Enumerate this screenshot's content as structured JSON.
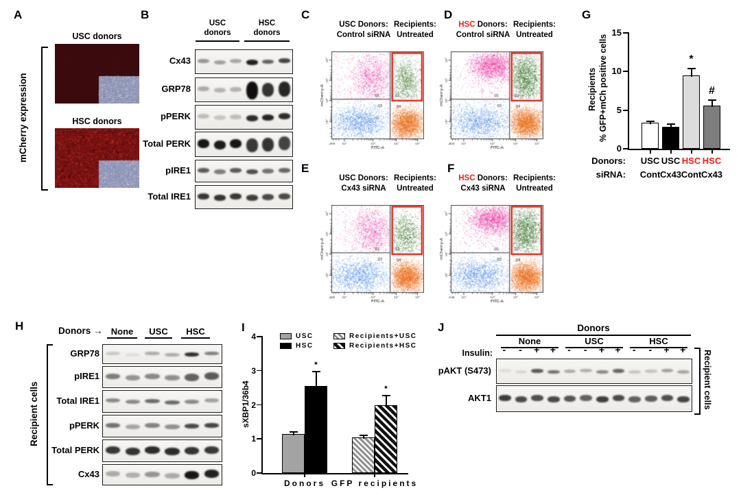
{
  "colors": {
    "hsc_red": "#ed2015",
    "gate_red": "#e32219"
  },
  "panels": {
    "A": {
      "label": "A",
      "side_label": "mCherry expression",
      "inset_color": "#9096b6",
      "images": [
        {
          "title": "USC donors",
          "base_color": "#3a0a0d",
          "appearance": "dark red, very faint mCherry signal, grayscale inset bottom-right"
        },
        {
          "title": "HSC donors",
          "base_color": "#731112",
          "appearance": "bright speckled red mCherry signal, grayscale inset bottom-right"
        }
      ]
    },
    "B": {
      "label": "B",
      "groups": [
        {
          "line1": "USC",
          "line2": "donors"
        },
        {
          "line1": "HSC",
          "line2": "donors"
        }
      ],
      "blots": [
        {
          "name": "Cx43",
          "band_h": 6,
          "lanes": [
            0.4,
            0.35,
            0.32,
            {
              "i": 0.9,
              "h": 8
            },
            0.62,
            {
              "i": 0.75,
              "h": 7
            }
          ]
        },
        {
          "name": "GRP78",
          "band_h": 7,
          "lanes": [
            0.3,
            0.26,
            0.27,
            {
              "i": 0.98,
              "h": 26
            },
            {
              "i": 0.82,
              "h": 20
            },
            {
              "i": 0.88,
              "h": 22
            }
          ]
        },
        {
          "name": "pPERK",
          "band_h": 7,
          "lanes": [
            0.22,
            0.18,
            0.22,
            {
              "i": 0.85,
              "h": 9
            },
            {
              "i": 0.88,
              "h": 9
            },
            {
              "i": 0.85,
              "h": 9
            }
          ]
        },
        {
          "name": "Total PERK",
          "band_h": 13,
          "lanes": [
            0.95,
            0.93,
            0.95,
            {
              "i": 0.8,
              "h": 20
            },
            {
              "i": 0.82,
              "h": 20
            },
            {
              "i": 0.75,
              "h": 20
            }
          ]
        },
        {
          "name": "pIRE1",
          "band_h": 7,
          "lanes": [
            0.65,
            0.5,
            0.65,
            0.7,
            0.55,
            0.6
          ]
        },
        {
          "name": "Total IRE1",
          "band_h": 9,
          "lanes": [
            0.8,
            0.82,
            0.8,
            0.78,
            0.72,
            0.72
          ]
        }
      ]
    },
    "H": {
      "label": "H",
      "donors_label": "Donors",
      "arrow": "→",
      "groups": [
        "None",
        "USC",
        "HSC"
      ],
      "side_label": "Recipient cells",
      "blots": [
        {
          "name": "GRP78",
          "band_h": 5,
          "lanes": [
            0.18,
            0.07,
            0.3,
            0.3,
            {
              "i": 0.85,
              "h": 6
            },
            0.5
          ]
        },
        {
          "name": "pIRE1",
          "band_h": 8,
          "lanes": [
            0.5,
            0.4,
            0.45,
            0.42,
            {
              "i": 0.62,
              "h": 11
            },
            {
              "i": 0.65,
              "h": 11
            }
          ]
        },
        {
          "name": "Total IRE1",
          "band_h": 6,
          "lanes": [
            0.45,
            0.45,
            0.58,
            0.58,
            0.45,
            0.35
          ]
        },
        {
          "name": "pPERK",
          "band_h": 7,
          "lanes": [
            0.55,
            0.32,
            0.48,
            0.42,
            0.72,
            0.75
          ]
        },
        {
          "name": "Total PERK",
          "band_h": 11,
          "lanes": [
            0.8,
            0.82,
            0.85,
            0.85,
            0.82,
            0.8
          ]
        },
        {
          "name": "Cx43",
          "band_h": 8,
          "lanes": [
            0.3,
            0.28,
            0.4,
            0.3,
            {
              "i": 0.95,
              "h": 12
            },
            {
              "i": 0.9,
              "h": 12
            }
          ]
        }
      ]
    },
    "J": {
      "label": "J",
      "donors_header": "Donors",
      "groups": [
        "None",
        "USC",
        "HSC"
      ],
      "insulin_label": "Insulin:",
      "insulin": [
        "-",
        "-",
        "+",
        "+",
        "-",
        "-",
        "+",
        "+",
        "-",
        "-",
        "+",
        "+"
      ],
      "side_label": "Recipient cells",
      "blots": [
        {
          "name": "pAKT (S473)",
          "band_h": 5,
          "lanes": [
            0.08,
            0.1,
            {
              "i": 0.65,
              "h": 6
            },
            0.55,
            0.3,
            0.28,
            0.45,
            {
              "i": 0.6,
              "h": 6
            },
            0.18,
            0.2,
            0.35,
            0.32
          ]
        },
        {
          "name": "AKT1",
          "band_h": 9,
          "lanes": [
            0.78,
            0.72,
            0.7,
            0.72,
            0.68,
            0.62,
            0.78,
            0.72,
            0.62,
            0.64,
            0.7,
            0.75
          ]
        }
      ]
    }
  },
  "chart_data": [
    {
      "panel": "G",
      "type": "bar",
      "ylabel_lines": [
        "Recipients",
        "% GFP+mCh positive cells"
      ],
      "ylim": [
        0,
        15
      ],
      "yticks": [
        0,
        5,
        10,
        15
      ],
      "row_labels": [
        "Donors:",
        "siRNA:"
      ],
      "categories": [
        {
          "donor": "USC",
          "sirna": "Cont",
          "donor_red": false
        },
        {
          "donor": "USC",
          "sirna": "Cx43",
          "donor_red": false
        },
        {
          "donor": "HSC",
          "sirna": "Cont",
          "donor_red": true
        },
        {
          "donor": "HSC",
          "sirna": "Cx43",
          "donor_red": true
        }
      ],
      "values": [
        3.4,
        2.8,
        9.5,
        5.6
      ],
      "errors": [
        0.2,
        0.5,
        1.0,
        0.8
      ],
      "sig": [
        "",
        "",
        "*",
        "#"
      ],
      "bar_fills": [
        "#ffffff",
        "#000000",
        "#dcdcdc",
        "#7d7d7d"
      ]
    },
    {
      "panel": "I",
      "type": "bar",
      "ylabel": "sXBP1/36b4",
      "ylim": [
        0,
        4
      ],
      "yticks": [
        0,
        1,
        2,
        3,
        4
      ],
      "groups": [
        "Donors",
        "GFP recipients"
      ],
      "bars": [
        {
          "label": "USC",
          "value": 1.15,
          "err": 0.07,
          "style": "gray",
          "sig": "",
          "group": 0
        },
        {
          "label": "HSC",
          "value": 2.55,
          "err": 0.45,
          "style": "black",
          "sig": "*",
          "group": 0
        },
        {
          "label": "Recipients+USC",
          "value": 1.05,
          "err": 0.07,
          "style": "hatch-gray",
          "sig": "",
          "group": 1
        },
        {
          "label": "Recipients+HSC",
          "value": 2.0,
          "err": 0.3,
          "style": "hatch-black",
          "sig": "*",
          "group": 1
        }
      ],
      "legend": [
        {
          "label": "USC",
          "style": "gray"
        },
        {
          "label": "HSC",
          "style": "black"
        },
        {
          "label": "Recipients+USC",
          "style": "hatch-gray"
        },
        {
          "label": "Recipients+HSC",
          "style": "hatch-black"
        }
      ]
    },
    {
      "panel": "C-F",
      "type": "scatter_flow",
      "x_axis": "FITC-A",
      "y_axis": "mCherry-A",
      "title_suffix": " Donors:",
      "recipients_label": "Recipients:",
      "x_ticks": [
        "10²",
        "10³",
        "10⁴",
        "10⁵"
      ],
      "y_ticks": [
        "10⁵",
        "10⁴",
        "10³",
        "10²"
      ],
      "quadrant_labels": [
        "Q1",
        "Q2",
        "Q3",
        "Q4"
      ],
      "panels": [
        {
          "label": "C",
          "donor": "USC",
          "red": false,
          "treatment": "Control siRNA",
          "recipients": "Untreated",
          "origin_tick": "-359",
          "donor_profile": "diffuse"
        },
        {
          "label": "D",
          "donor": "HSC",
          "red": true,
          "treatment": "Control siRNA",
          "recipients": "Untreated",
          "origin_tick": "-820",
          "donor_profile": "dense"
        },
        {
          "label": "E",
          "donor": "USC",
          "red": false,
          "treatment": "Cx43 siRNA",
          "recipients": "Untreated",
          "origin_tick": "-425",
          "donor_profile": "diffuse"
        },
        {
          "label": "F",
          "donor": "HSC",
          "red": true,
          "treatment": "Cx43 siRNA",
          "recipients": "Untreated",
          "origin_tick": "-106",
          "donor_profile": "dense"
        }
      ],
      "clusters": {
        "pink_diffuse": [
          {
            "cx": 0.44,
            "cy": 0.3,
            "sx": 0.1,
            "sy": 0.13,
            "n": 900
          },
          {
            "cx": 0.42,
            "cy": 0.3,
            "sx": 0.2,
            "sy": 0.2,
            "n": 700
          }
        ],
        "pink_dense": [
          {
            "cx": 0.45,
            "cy": 0.16,
            "sx": 0.12,
            "sy": 0.08,
            "n": 1900
          },
          {
            "cx": 0.43,
            "cy": 0.3,
            "sx": 0.22,
            "sy": 0.17,
            "n": 500
          }
        ],
        "blue": [
          {
            "cx": 0.3,
            "cy": 0.8,
            "sx": 0.15,
            "sy": 0.09,
            "n": 1200
          },
          {
            "cx": 0.33,
            "cy": 0.78,
            "sx": 0.25,
            "sy": 0.14,
            "n": 500
          }
        ],
        "orange": [
          {
            "cx": 0.815,
            "cy": 0.82,
            "sx": 0.085,
            "sy": 0.08,
            "n": 2600
          },
          {
            "cx": 0.8,
            "cy": 0.8,
            "sx": 0.13,
            "sy": 0.12,
            "n": 500
          }
        ],
        "green_diffuse": [
          {
            "cx": 0.8,
            "cy": 0.34,
            "sx": 0.075,
            "sy": 0.12,
            "n": 850
          },
          {
            "cx": 0.8,
            "cy": 0.32,
            "sx": 0.11,
            "sy": 0.16,
            "n": 300
          }
        ],
        "green_dense": [
          {
            "cx": 0.805,
            "cy": 0.3,
            "sx": 0.08,
            "sy": 0.13,
            "n": 1600
          },
          {
            "cx": 0.8,
            "cy": 0.3,
            "sx": 0.11,
            "sy": 0.17,
            "n": 400
          }
        ]
      },
      "colors": {
        "pink": "#ee2fa0",
        "blue": "#2f79e8",
        "green": "#2e6b1e",
        "orange": "#f0721e"
      }
    }
  ]
}
